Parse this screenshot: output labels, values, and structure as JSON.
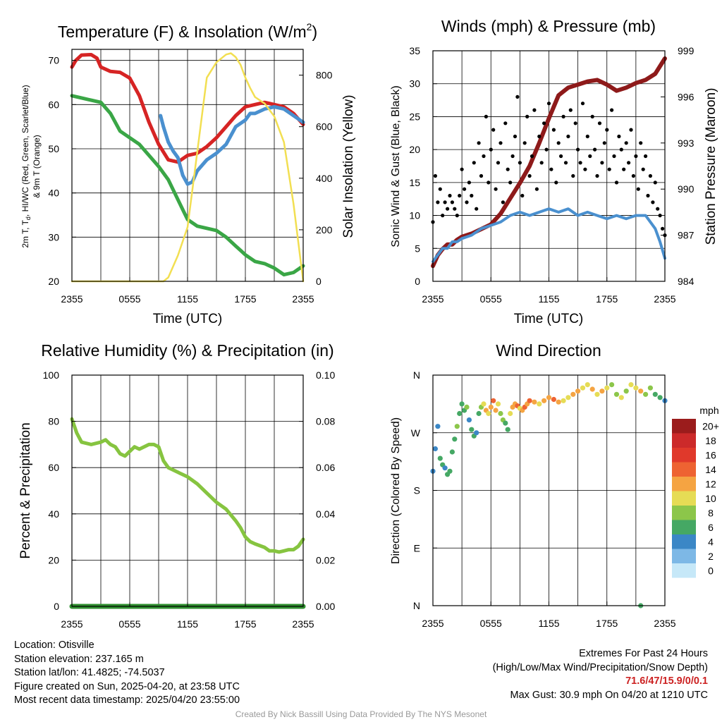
{
  "panels": {
    "temperature": {
      "title": "Temperature (F) & Insolation (W/m",
      "title_sup": "2",
      "title_close": ")",
      "ylabel_left_line1": "2m T, T",
      "ylabel_left_sub": "d",
      "ylabel_left_line1_rest": ", HI/WC (Red, Green, Scarlet/Blue)",
      "ylabel_left_line2": "& 9m T (Orange)",
      "ylabel_right": "Solar Insolation (Yellow)",
      "xlabel": "Time (UTC)",
      "left_ticks": [
        "20",
        "30",
        "40",
        "50",
        "60",
        "70"
      ],
      "right_ticks": [
        "0",
        "200",
        "400",
        "600",
        "800"
      ]
    },
    "winds": {
      "title": "Winds (mph) & Pressure (mb)",
      "ylabel_left": "Sonic Wind & Gust (Blue, Black)",
      "ylabel_right": "Station Pressure (Maroon)",
      "xlabel": "Time (UTC)",
      "left_ticks": [
        "0",
        "5",
        "10",
        "15",
        "20",
        "25",
        "30",
        "35"
      ],
      "right_ticks": [
        "984",
        "987",
        "990",
        "993",
        "996",
        "999"
      ]
    },
    "humidity": {
      "title": "Relative Humidity (%) & Precipitation (in)",
      "ylabel_left": "Percent & Precipitation",
      "left_ticks": [
        "0",
        "20",
        "40",
        "60",
        "80",
        "100"
      ],
      "right_ticks": [
        "0.00",
        "0.02",
        "0.04",
        "0.06",
        "0.08",
        "0.10"
      ]
    },
    "direction": {
      "title": "Wind Direction",
      "ylabel_left": "Direction (Colored By Speed)",
      "left_ticks": [
        "N",
        "E",
        "S",
        "W",
        "N"
      ],
      "legend_title": "mph",
      "legend_labels": [
        "20+",
        "18",
        "16",
        "14",
        "12",
        "10",
        "8",
        "6",
        "4",
        "2",
        "0"
      ],
      "legend_colors": [
        "#9b1c1c",
        "#cc2a2a",
        "#e0392b",
        "#ee6332",
        "#f5a442",
        "#e6dc55",
        "#8cc64a",
        "#45a864",
        "#3b87c6",
        "#7db8e6",
        "#c6e8f8"
      ]
    }
  },
  "time_ticks": [
    "2355",
    "0555",
    "1155",
    "1755",
    "2355"
  ],
  "info": {
    "location": "Location: Otisville",
    "elevation": "Station elevation: 237.165 m",
    "latlon": "Station lat/lon: 41.4825; -74.5037",
    "created": "Figure created on Sun, 2025-04-20, at 23:58 UTC",
    "recent": "Most recent data timestamp: 2025/04/20 23:55:00"
  },
  "extremes": {
    "title": "Extremes For Past 24 Hours",
    "subtitle": "(High/Low/Max Wind/Precipitation/Snow Depth)",
    "values": "71.6/47/15.9/0/0.1",
    "gust": "Max Gust: 30.9 mph On 04/20 at 1210 UTC"
  },
  "credit": "Created By Nick Bassill Using Data Provided By The NYS Mesonet",
  "chart_data": [
    {
      "panel": "temperature",
      "type": "line",
      "x_unit": "hours since 2355 UTC",
      "ylim_left": [
        20,
        72.5
      ],
      "ylim_right": [
        0,
        900
      ],
      "series": [
        {
          "color": "#d62424",
          "axis": "left",
          "x": [
            0,
            0.4,
            1,
            2,
            2.6,
            3,
            3.5,
            4,
            5,
            6,
            7,
            8,
            9,
            10,
            11,
            12,
            13,
            14,
            15,
            16,
            17,
            18,
            19,
            20,
            21,
            22,
            23,
            24
          ],
          "y": [
            68.5,
            70,
            71.2,
            71.3,
            70.5,
            68.5,
            68,
            67.5,
            67.3,
            66,
            62,
            56,
            51,
            47.5,
            47,
            48.5,
            49,
            50.5,
            52.5,
            55,
            57.5,
            59.5,
            60,
            60.5,
            60,
            59.5,
            58,
            55.5
          ]
        },
        {
          "color": "#4a90cf",
          "axis": "left",
          "x": [
            9.2,
            9.5,
            10,
            10.5,
            11,
            11.5,
            12,
            12.5,
            13,
            14,
            15,
            16,
            17,
            18,
            18.5,
            19,
            20,
            21,
            22,
            23,
            24
          ],
          "y": [
            57.5,
            55,
            51.5,
            49.5,
            48,
            44,
            42,
            42.5,
            45,
            47.5,
            49,
            51,
            55,
            56.5,
            58,
            58,
            59,
            59.5,
            59,
            57.5,
            56
          ]
        },
        {
          "color": "#3aa646",
          "axis": "left",
          "x": [
            0,
            1,
            2,
            3,
            4,
            5,
            6,
            7,
            8,
            9,
            10,
            11,
            12,
            13,
            14,
            15,
            16,
            17,
            17.5,
            18,
            19,
            20,
            21,
            22,
            23,
            24
          ],
          "y": [
            62,
            61.5,
            61,
            60.5,
            58,
            54,
            52.5,
            51,
            48.5,
            46,
            43,
            38.5,
            34,
            32.5,
            32,
            31.5,
            30,
            28,
            27,
            26,
            24.5,
            24,
            23,
            21.5,
            22,
            23.5
          ]
        },
        {
          "color": "#f2df52",
          "axis": "right",
          "x": [
            0,
            5,
            9.5,
            10,
            11,
            12,
            13,
            14,
            15,
            16,
            16.5,
            17,
            17.5,
            18,
            18.5,
            19,
            20,
            21,
            22,
            23,
            24
          ],
          "y": [
            0,
            0,
            0,
            15,
            100,
            210,
            500,
            790,
            850,
            880,
            885,
            870,
            840,
            790,
            750,
            715,
            690,
            640,
            540,
            300,
            0
          ]
        }
      ]
    },
    {
      "panel": "winds",
      "type": "line",
      "x_unit": "hours since 2355 UTC",
      "ylim_left": [
        0,
        35
      ],
      "ylim_right": [
        984,
        999
      ],
      "series": [
        {
          "color": "#8e1a1a",
          "axis": "right",
          "x": [
            0,
            0.5,
            1,
            1.5,
            2,
            2.5,
            3,
            4,
            5,
            6,
            7,
            8,
            9,
            10,
            11,
            12,
            13,
            14,
            15,
            16,
            17,
            18,
            19,
            20,
            21,
            22,
            23,
            24
          ],
          "y": [
            985,
            985.7,
            986.1,
            986.4,
            986.4,
            986.7,
            986.9,
            987.1,
            987.4,
            987.7,
            988.4,
            989.4,
            990.4,
            991.5,
            993,
            994.6,
            996.1,
            996.6,
            996.8,
            997,
            997.1,
            996.8,
            996.4,
            996.6,
            996.9,
            997.1,
            997.5,
            998.5
          ]
        },
        {
          "color": "#4a90cf",
          "axis": "left",
          "x": [
            0,
            0.5,
            1,
            1.5,
            2,
            2.5,
            3,
            4,
            5,
            6,
            7,
            8,
            9,
            10,
            11,
            12,
            13,
            14,
            15,
            16,
            17,
            18,
            19,
            20,
            21,
            22,
            23,
            23.5,
            24
          ],
          "y": [
            3,
            4,
            5,
            5,
            6,
            6,
            6.5,
            7,
            8,
            8.5,
            9,
            10,
            10.5,
            10,
            10.5,
            11,
            10.5,
            11,
            10,
            10.5,
            10,
            9.5,
            10,
            9.5,
            10,
            10,
            8,
            6,
            3.5
          ]
        },
        {
          "color": "#000000",
          "axis": "left",
          "style": "points",
          "x": [
            0,
            0.25,
            0.5,
            0.75,
            1,
            1.25,
            1.5,
            1.75,
            2,
            2.25,
            2.5,
            2.75,
            3,
            3.25,
            3.5,
            3.75,
            4,
            4.25,
            4.5,
            4.75,
            5,
            5.25,
            5.5,
            5.75,
            6,
            6.25,
            6.5,
            6.75,
            7,
            7.25,
            7.5,
            7.75,
            8,
            8.25,
            8.5,
            8.75,
            9,
            9.25,
            9.5,
            9.75,
            10,
            10.25,
            10.5,
            10.75,
            11,
            11.25,
            11.5,
            11.75,
            12,
            12.25,
            12.5,
            12.75,
            13,
            13.25,
            13.5,
            13.75,
            14,
            14.25,
            14.5,
            14.75,
            15,
            15.25,
            15.5,
            15.75,
            16,
            16.25,
            16.5,
            16.75,
            17,
            17.25,
            17.5,
            17.75,
            18,
            18.25,
            18.5,
            18.75,
            19,
            19.25,
            19.5,
            19.75,
            20,
            20.25,
            20.5,
            20.75,
            21,
            21.25,
            21.5,
            21.75,
            22,
            22.25,
            22.5,
            22.75,
            23,
            23.25,
            23.5,
            23.75,
            24
          ],
          "y": [
            9,
            16,
            12,
            14,
            10,
            12,
            11,
            13,
            12,
            11,
            10,
            13,
            17,
            14,
            12,
            15,
            13,
            18,
            11,
            21,
            16,
            19,
            25,
            15,
            20,
            23,
            14,
            18,
            21,
            12,
            24,
            17,
            15,
            19,
            22,
            28,
            18,
            13,
            21,
            25,
            16,
            19,
            26,
            14,
            22,
            18,
            24,
            20,
            27,
            17,
            23,
            15,
            21,
            19,
            25,
            18,
            22,
            26,
            16,
            24,
            20,
            18,
            27,
            17,
            22,
            19,
            25,
            20,
            16,
            24,
            18,
            21,
            23,
            17,
            26,
            19,
            15,
            22,
            20,
            17,
            21,
            18,
            23,
            16,
            19,
            14,
            21,
            17,
            19,
            13,
            16,
            12,
            15,
            11,
            10,
            8,
            7
          ]
        }
      ]
    },
    {
      "panel": "humidity",
      "type": "line",
      "x_unit": "hours since 2355 UTC",
      "ylim_left": [
        0,
        100
      ],
      "ylim_right": [
        0,
        0.1
      ],
      "series": [
        {
          "color": "#86c440",
          "axis": "left",
          "x": [
            0,
            0.5,
            1,
            2,
            3,
            3.5,
            4,
            4.5,
            5,
            5.5,
            6,
            6.5,
            7,
            8,
            8.5,
            9,
            9.5,
            10,
            10.5,
            11,
            12,
            13,
            14,
            15,
            16,
            17,
            17.5,
            18,
            18.5,
            19,
            20,
            20.5,
            21,
            21.5,
            22,
            22.5,
            23,
            23.5,
            24
          ],
          "y": [
            81,
            75,
            71,
            70,
            71,
            72,
            70,
            69,
            66,
            65,
            67,
            69,
            68,
            70,
            70,
            69,
            63,
            60,
            59,
            58,
            56,
            53,
            49,
            45,
            42,
            37,
            34,
            30,
            28,
            27,
            25.5,
            24,
            24,
            23.5,
            24,
            24.5,
            24.5,
            26,
            29
          ]
        },
        {
          "color": "#2f8f2f",
          "axis": "right",
          "x": [
            0,
            24
          ],
          "y": [
            0,
            0
          ]
        }
      ]
    },
    {
      "panel": "direction",
      "type": "scatter",
      "x_unit": "hours since 2355 UTC",
      "y_unit": "degrees",
      "ylim": [
        0,
        360
      ],
      "x": [
        0,
        0.25,
        0.5,
        0.75,
        1,
        1.25,
        1.5,
        1.75,
        2,
        2.25,
        2.5,
        2.75,
        3,
        3.25,
        3.5,
        3.75,
        4,
        4.25,
        4.5,
        4.75,
        5,
        5.25,
        5.5,
        5.75,
        6,
        6.25,
        6.5,
        6.75,
        7,
        7.25,
        7.5,
        7.75,
        8,
        8.25,
        8.5,
        8.75,
        9,
        9.25,
        9.5,
        9.75,
        10,
        10.5,
        11,
        11.5,
        12,
        12.5,
        13,
        13.5,
        14,
        14.5,
        15,
        15.5,
        16,
        16.5,
        17,
        17.5,
        18,
        18.5,
        19,
        19.5,
        20,
        20.5,
        21,
        21.5,
        22,
        22.5,
        23,
        23.5,
        24,
        21.5
      ],
      "y": [
        210,
        245,
        280,
        230,
        220,
        215,
        205,
        210,
        240,
        260,
        280,
        300,
        315,
        305,
        310,
        290,
        275,
        265,
        270,
        300,
        310,
        315,
        305,
        300,
        310,
        320,
        305,
        315,
        300,
        290,
        285,
        275,
        300,
        310,
        315,
        312,
        308,
        305,
        310,
        315,
        320,
        318,
        315,
        320,
        325,
        322,
        318,
        320,
        325,
        330,
        335,
        340,
        345,
        338,
        330,
        335,
        340,
        345,
        330,
        325,
        335,
        345,
        340,
        335,
        330,
        340,
        330,
        325,
        320,
        0
      ],
      "speed": [
        4,
        3,
        3,
        5,
        6,
        4,
        5,
        6,
        6,
        5,
        7,
        6,
        6,
        5,
        7,
        4,
        5,
        6,
        4,
        5,
        7,
        9,
        11,
        10,
        12,
        13,
        11,
        9,
        8,
        7,
        5,
        6,
        9,
        11,
        12,
        13,
        10,
        12,
        14,
        11,
        13,
        12,
        10,
        12,
        11,
        13,
        12,
        10,
        9,
        11,
        12,
        10,
        9,
        11,
        10,
        12,
        9,
        8,
        7,
        9,
        8,
        10,
        9,
        11,
        8,
        7,
        6,
        5,
        4,
        6
      ]
    }
  ]
}
